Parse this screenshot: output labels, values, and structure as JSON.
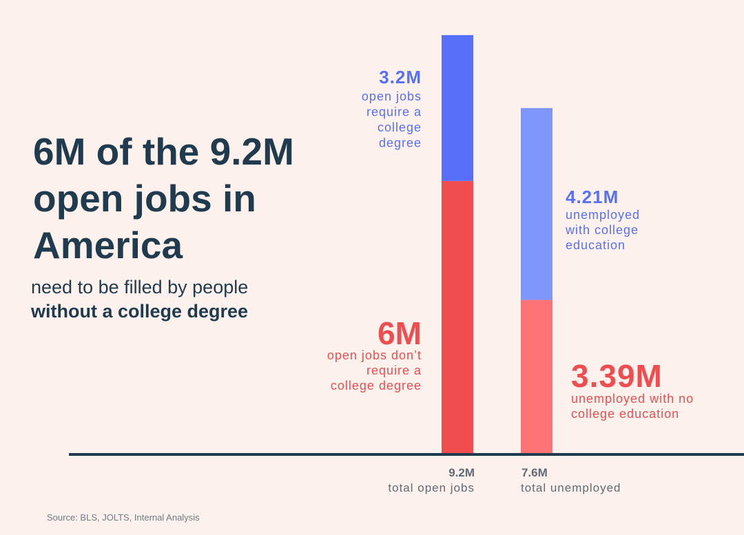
{
  "headline": "6M of the 9.2M open jobs in America",
  "subline": {
    "light": "need to be filled by people",
    "strong": "without a college degree"
  },
  "source": "Source: BLS, JOLTS, Internal Analysis",
  "colors": {
    "background": "#fcf1ec",
    "text_dark": "#1f3b4d",
    "blue_dark": "#5670fa",
    "blue_light": "#7f97fb",
    "red_dark": "#ef4d4f",
    "red_light": "#fe7373",
    "axis": "#1f3b4d",
    "gray": "#5f6a72"
  },
  "chart_data": {
    "type": "bar",
    "stacked": true,
    "unit": "M",
    "ylim": [
      0,
      10
    ],
    "grid": false,
    "legend": "none",
    "bars": [
      {
        "name": "open-jobs",
        "total_value": 9.2,
        "total_label": "9.2M",
        "category_label": "total open jobs",
        "segments": [
          {
            "key": "no-degree",
            "value": 6.0,
            "value_label": "6M",
            "desc": [
              "open jobs don’t",
              "require a",
              "college degree"
            ],
            "color": "#ef4d4f"
          },
          {
            "key": "degree",
            "value": 3.2,
            "value_label": "3.2M",
            "desc": [
              "open jobs",
              "require a",
              "college",
              "degree"
            ],
            "color": "#5670fa"
          }
        ]
      },
      {
        "name": "unemployed",
        "total_value": 7.6,
        "total_label": "7.6M",
        "category_label": "total unemployed",
        "segments": [
          {
            "key": "no-college",
            "value": 3.39,
            "value_label": "3.39M",
            "desc": [
              "unemployed with no",
              "college education"
            ],
            "color": "#fe7373"
          },
          {
            "key": "college",
            "value": 4.21,
            "value_label": "4.21M",
            "desc": [
              "unemployed",
              "with college",
              "education"
            ],
            "color": "#7f97fb"
          }
        ]
      }
    ]
  }
}
